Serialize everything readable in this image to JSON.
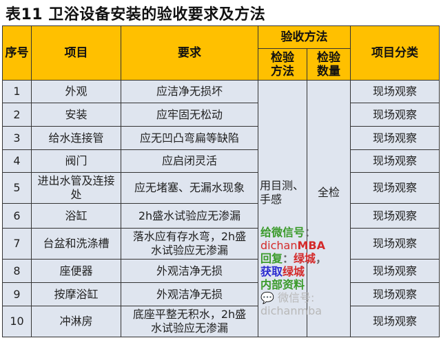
{
  "title": "表11  卫浴设备安装的验收要求及方法",
  "header": {
    "seq": "序号",
    "item": "项目",
    "requirement": "要求",
    "method_group": "验收方法",
    "method": "检验方法",
    "quantity": "检验数量",
    "category": "项目分类"
  },
  "merged": {
    "method": "用目测、手感",
    "quantity": "全检"
  },
  "rows": [
    {
      "no": "1",
      "item": "外观",
      "req": "应洁净无损坏",
      "cat": "现场观察"
    },
    {
      "no": "2",
      "item": "安装",
      "req": "应牢固无松动",
      "cat": "现场观察"
    },
    {
      "no": "3",
      "item": "给水连接管",
      "req": "应无凹凸弯扁等缺陷",
      "cat": "现场观察"
    },
    {
      "no": "4",
      "item": "阀门",
      "req": "应启闭灵活",
      "cat": "现场观察"
    },
    {
      "no": "5",
      "item": "进出水管及连接处",
      "req": "应无堵塞、无漏水现象",
      "cat": "现场观察"
    },
    {
      "no": "6",
      "item": "浴缸",
      "req": "2h盛水试验应无渗漏",
      "cat": "现场观察"
    },
    {
      "no": "7",
      "item": "台盆和洗涤槽",
      "req": "落水应有存水弯，2h盛水试验应无渗漏",
      "cat": "现场观察"
    },
    {
      "no": "8",
      "item": "座便器",
      "req": "外观洁净无损",
      "cat": "现场观察"
    },
    {
      "no": "9",
      "item": "按摩浴缸",
      "req": "外观洁净无损",
      "cat": "现场观察"
    },
    {
      "no": "10",
      "item": "冲淋房",
      "req": "底座平整无积水，2h盛水试验应无渗漏",
      "cat": "现场观察"
    }
  ],
  "watermark": {
    "line1_a": "给微信号",
    "line1_b": "：",
    "line1_c": "dichan",
    "line1_d": "MBA",
    "line2_a": "回复",
    "line2_b": "：",
    "line2_c": "绿城",
    "line2_d": "，",
    "line2_e": "获取",
    "line2_f": "绿城",
    "line2_g": "内部资料",
    "wechat": "微信号: dichanmba",
    "colors": {
      "green": "#3a9a2a",
      "red": "#d42a2a",
      "blue": "#2a2ad0"
    }
  }
}
